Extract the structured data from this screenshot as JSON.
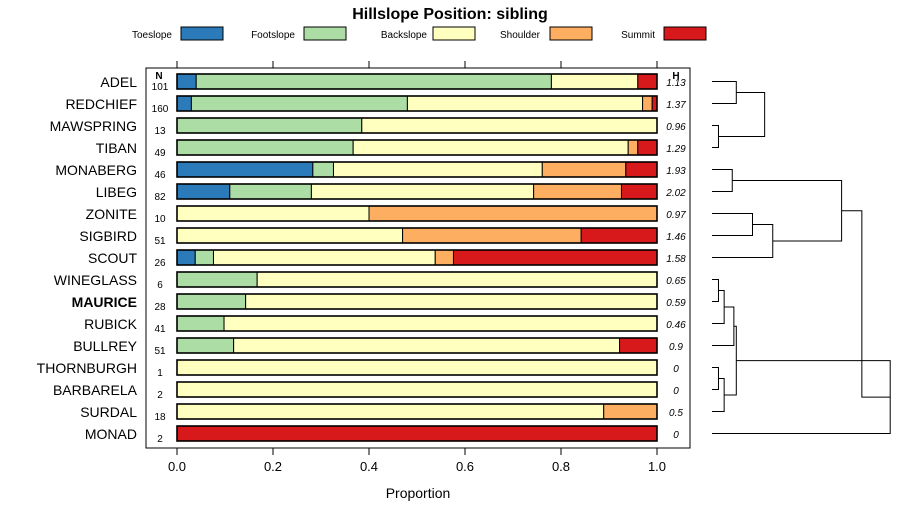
{
  "chart_data": {
    "type": "bar",
    "stacked": true,
    "orientation": "horizontal",
    "title": "Hillslope Position: sibling",
    "xlabel": "Proportion",
    "xlim": [
      0,
      1
    ],
    "x_ticks": [
      "0.0",
      "0.2",
      "0.4",
      "0.6",
      "0.8",
      "1.0"
    ],
    "legend_position": "top",
    "n_header": "N",
    "h_header": "H",
    "series": [
      {
        "name": "Toeslope",
        "color": "#2b7bba"
      },
      {
        "name": "Footslope",
        "color": "#abdda4"
      },
      {
        "name": "Backslope",
        "color": "#ffffbf"
      },
      {
        "name": "Shoulder",
        "color": "#fdae61"
      },
      {
        "name": "Summit",
        "color": "#d7191c"
      }
    ],
    "rows": [
      {
        "label": "ADEL",
        "bold": false,
        "n": "101",
        "h": "1.13",
        "values": [
          0.04,
          0.74,
          0.18,
          0.0,
          0.04
        ]
      },
      {
        "label": "REDCHIEF",
        "bold": false,
        "n": "160",
        "h": "1.37",
        "values": [
          0.03,
          0.45,
          0.49,
          0.02,
          0.01
        ]
      },
      {
        "label": "MAWSPRING",
        "bold": false,
        "n": "13",
        "h": "0.96",
        "values": [
          0.0,
          0.385,
          0.615,
          0.0,
          0.0
        ]
      },
      {
        "label": "TIBAN",
        "bold": false,
        "n": "49",
        "h": "1.29",
        "values": [
          0.0,
          0.367,
          0.573,
          0.02,
          0.04
        ]
      },
      {
        "label": "MONABERG",
        "bold": false,
        "n": "46",
        "h": "1.93",
        "values": [
          0.283,
          0.043,
          0.435,
          0.174,
          0.065
        ]
      },
      {
        "label": "LIBEG",
        "bold": false,
        "n": "82",
        "h": "2.02",
        "values": [
          0.11,
          0.17,
          0.463,
          0.183,
          0.074
        ]
      },
      {
        "label": "ZONITE",
        "bold": false,
        "n": "10",
        "h": "0.97",
        "values": [
          0.0,
          0.0,
          0.4,
          0.6,
          0.0
        ]
      },
      {
        "label": "SIGBIRD",
        "bold": false,
        "n": "51",
        "h": "1.46",
        "values": [
          0.0,
          0.0,
          0.47,
          0.372,
          0.158
        ]
      },
      {
        "label": "SCOUT",
        "bold": false,
        "n": "26",
        "h": "1.58",
        "values": [
          0.038,
          0.038,
          0.462,
          0.038,
          0.424
        ]
      },
      {
        "label": "WINEGLASS",
        "bold": false,
        "n": "6",
        "h": "0.65",
        "values": [
          0.0,
          0.167,
          0.833,
          0.0,
          0.0
        ]
      },
      {
        "label": "MAURICE",
        "bold": true,
        "n": "28",
        "h": "0.59",
        "values": [
          0.0,
          0.143,
          0.857,
          0.0,
          0.0
        ]
      },
      {
        "label": "RUBICK",
        "bold": false,
        "n": "41",
        "h": "0.46",
        "values": [
          0.0,
          0.098,
          0.902,
          0.0,
          0.0
        ]
      },
      {
        "label": "BULLREY",
        "bold": false,
        "n": "51",
        "h": "0.9",
        "values": [
          0.0,
          0.118,
          0.804,
          0.0,
          0.078
        ]
      },
      {
        "label": "THORNBURGH",
        "bold": false,
        "n": "1",
        "h": "0",
        "values": [
          0.0,
          0.0,
          1.0,
          0.0,
          0.0
        ]
      },
      {
        "label": "BARBARELA",
        "bold": false,
        "n": "2",
        "h": "0",
        "values": [
          0.0,
          0.0,
          1.0,
          0.0,
          0.0
        ]
      },
      {
        "label": "SURDAL",
        "bold": false,
        "n": "18",
        "h": "0.5",
        "values": [
          0.0,
          0.0,
          0.889,
          0.111,
          0.0
        ]
      },
      {
        "label": "MONAD",
        "bold": false,
        "n": "2",
        "h": "0",
        "values": [
          0.0,
          0.0,
          0.0,
          0.0,
          1.0
        ]
      }
    ],
    "dendrogram": {
      "merges": [
        [
          0,
          1,
          0.3
        ],
        [
          2,
          3,
          0.08
        ],
        [
          17,
          18,
          0.65
        ],
        [
          4,
          5,
          0.25
        ],
        [
          6,
          7,
          0.5
        ],
        [
          8,
          21,
          0.75
        ],
        [
          20,
          22,
          1.6
        ],
        [
          9,
          10,
          0.08
        ],
        [
          24,
          11,
          0.15
        ],
        [
          25,
          12,
          0.27
        ],
        [
          13,
          14,
          0.08
        ],
        [
          27,
          15,
          0.15
        ],
        [
          26,
          28,
          0.3
        ],
        [
          29,
          16,
          2.2
        ],
        [
          23,
          30,
          1.85
        ]
      ]
    }
  }
}
